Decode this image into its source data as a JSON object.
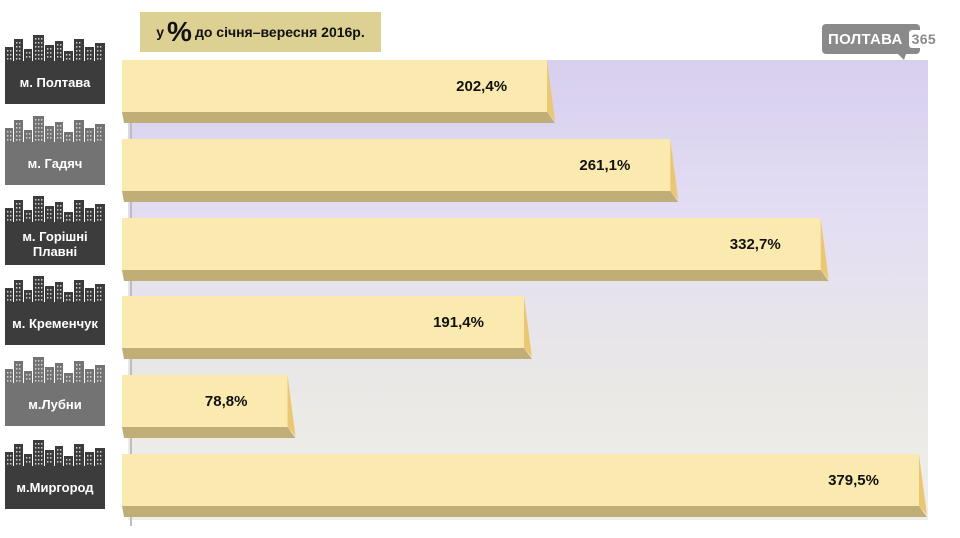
{
  "title": {
    "prefix": "у",
    "percent_sign": "%",
    "text": "до січня–вересня 2016р."
  },
  "logo": {
    "name": "ПОЛТАВА",
    "number": "365"
  },
  "colors": {
    "bar_face": "#fbeab0",
    "bar_side": "#ecc773",
    "bar_base": "#bfae76",
    "tile_dark": "#3c3c3c",
    "tile_light": "#737373",
    "title_bg": "#ddd093"
  },
  "chart_data": {
    "type": "bar",
    "orientation": "horizontal",
    "categories": [
      "м. Полтава",
      "м. Гадяч",
      "м. Горішні Плавні",
      "м. Кременчук",
      "м.Лубни",
      "м.Миргород"
    ],
    "series": [
      {
        "values": [
          202.4,
          261.1,
          332.7,
          191.4,
          78.8,
          379.5
        ]
      }
    ],
    "value_labels": [
      "202,4%",
      "261,1%",
      "332,7%",
      "191,4%",
      "78,8%",
      "379,5%"
    ],
    "xlim": [
      0,
      380
    ],
    "grid": false
  },
  "tiles": [
    {
      "label": "м. Полтава",
      "style": "dark"
    },
    {
      "label": "м. Гадяч",
      "style": "light"
    },
    {
      "label": "м. Горішні Плавні",
      "style": "dark"
    },
    {
      "label": "м. Кременчук",
      "style": "dark"
    },
    {
      "label": "м.Лубни",
      "style": "light"
    },
    {
      "label": "м.Миргород",
      "style": "dark"
    }
  ]
}
